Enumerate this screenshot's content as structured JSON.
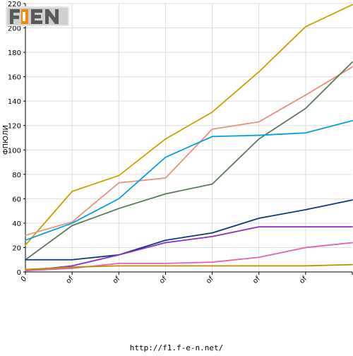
{
  "chart_data": {
    "type": "line",
    "title": "",
    "xlabel": "",
    "ylabel": "ФПЮЛИ",
    "ylim": [
      0,
      220
    ],
    "yticks": [
      0,
      20,
      40,
      60,
      80,
      100,
      120,
      140,
      160,
      180,
      200,
      220
    ],
    "x_tick_labels": [
      "0",
      "of",
      "of",
      "of",
      "of",
      "of",
      "of"
    ],
    "grid": true,
    "legend": "none",
    "x": [
      0,
      1,
      2,
      3,
      4,
      5,
      6,
      7
    ],
    "series": [
      {
        "color": "#c8a000",
        "values": [
          22,
          66,
          79,
          109,
          131,
          164,
          201,
          219
        ]
      },
      {
        "color": "#e8907c",
        "values": [
          30,
          41,
          73,
          77,
          117,
          123,
          145,
          168
        ]
      },
      {
        "color": "#5a7a5a",
        "values": [
          10,
          38,
          52,
          64,
          72,
          109,
          134,
          172
        ]
      },
      {
        "color": "#00a0e0",
        "values": [
          26,
          40,
          60,
          94,
          111,
          112,
          114,
          124
        ]
      },
      {
        "color": "#0a3a78",
        "values": [
          10,
          10,
          14,
          26,
          32,
          44,
          51,
          59
        ]
      },
      {
        "color": "#8a2ad0",
        "values": [
          1,
          5,
          14,
          24,
          29,
          37,
          37,
          37
        ]
      },
      {
        "color": "#e860b0",
        "values": [
          1,
          3,
          7,
          7,
          8,
          12,
          20,
          24
        ]
      },
      {
        "color": "#b89000",
        "values": [
          2,
          4,
          5,
          5,
          5,
          5,
          5,
          6
        ]
      }
    ]
  },
  "logo": {
    "text": "F1EN"
  },
  "footer": {
    "url": "http://f1.f-e-n.net/"
  }
}
